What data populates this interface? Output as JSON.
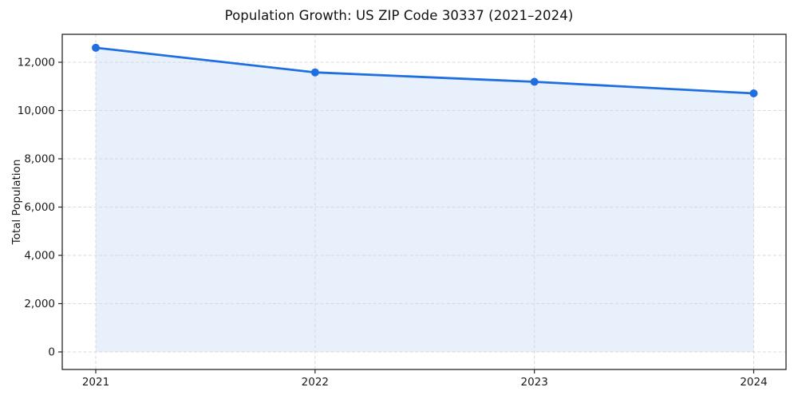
{
  "chart_data": {
    "type": "line",
    "title": "Population Growth: US ZIP Code 30337 (2021–2024)",
    "xlabel": "",
    "ylabel": "Total Population",
    "categories": [
      "2021",
      "2022",
      "2023",
      "2024"
    ],
    "series": [
      {
        "name": "Total Population",
        "values": [
          12600,
          11580,
          11190,
          10710
        ]
      }
    ],
    "yticks": [
      0,
      2000,
      4000,
      6000,
      8000,
      10000,
      12000
    ],
    "ytick_labels": [
      "0",
      "2,000",
      "4,000",
      "6,000",
      "8,000",
      "10,000",
      "12,000"
    ],
    "ylim": [
      0,
      13150
    ],
    "grid": true,
    "grid_style": "dashed",
    "legend_position": "none",
    "area_fill": true,
    "colors": {
      "line": "#1f6fe0",
      "marker": "#1f6fe0",
      "fill": "#e8f0fc",
      "grid": "#d9d9d9",
      "spine": "#262626",
      "tick_text": "#1a1a1a",
      "background": "#ffffff"
    }
  }
}
